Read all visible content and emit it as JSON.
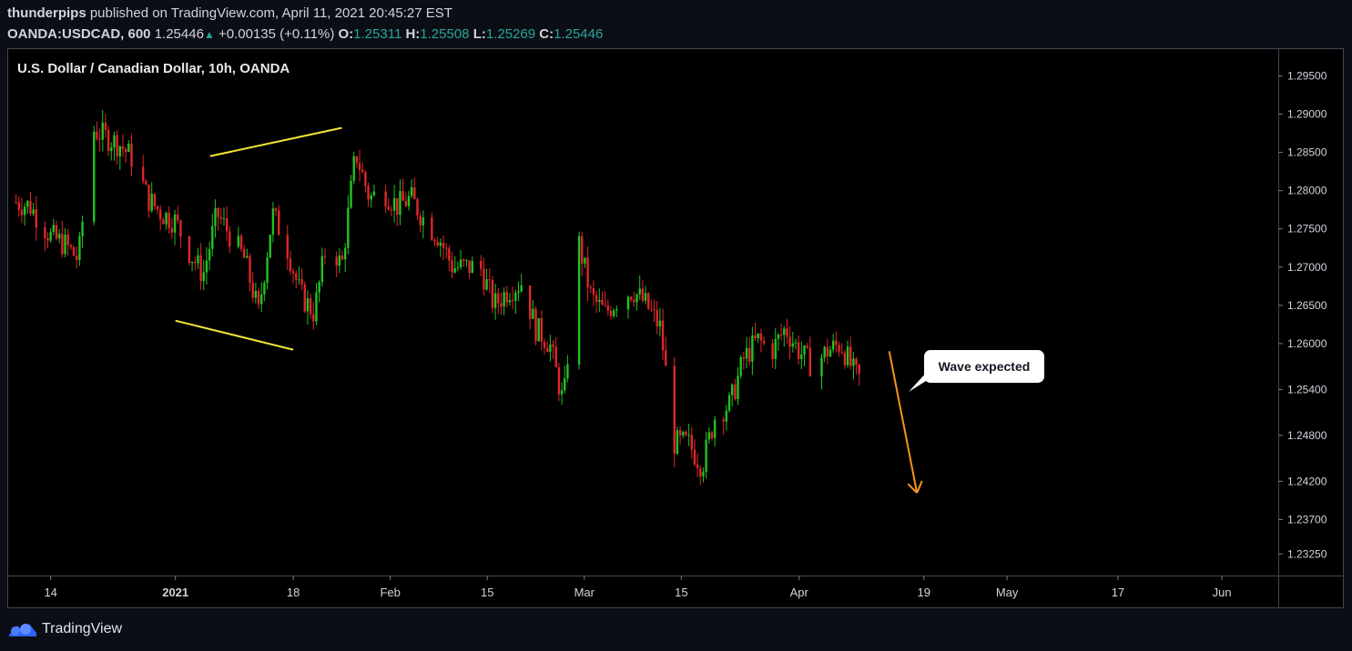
{
  "header": {
    "author": "thunderpips",
    "published_text": "published on TradingView.com, April 11, 2021 20:45:27 EST",
    "symbol": "OANDA:USDCAD, 600",
    "last": "1.25446",
    "change": "+0.00135 (+0.11%)",
    "o_label": "O:",
    "o_value": "1.25311",
    "h_label": "H:",
    "h_value": "1.25508",
    "l_label": "L:",
    "l_value": "1.25269",
    "c_label": "C:",
    "c_value": "1.25446"
  },
  "footer": {
    "brand": "TradingView"
  },
  "colors": {
    "up": "#26a69a",
    "candle_up": "#22c322",
    "candle_down": "#e0262b",
    "pattern": "#f3e63a",
    "arrow": "#f7941d"
  },
  "chart_data": {
    "type": "candlestick",
    "title": "U.S. Dollar / Canadian Dollar, 10h, OANDA",
    "ylim": [
      1.2298,
      1.2985
    ],
    "y_ticks": [
      "1.29500",
      "1.29000",
      "1.28500",
      "1.28000",
      "1.27500",
      "1.27000",
      "1.26500",
      "1.26000",
      "1.25400",
      "1.24800",
      "1.24200",
      "1.23700",
      "1.23250"
    ],
    "x_ticks": [
      "14",
      "2021",
      "18",
      "Feb",
      "15",
      "Mar",
      "15",
      "Apr",
      "19",
      "May",
      "17",
      "Jun"
    ],
    "close_path": [
      [
        "2020-12-09",
        1.2785
      ],
      [
        "2020-12-11",
        1.278
      ],
      [
        "2020-12-14",
        1.274
      ],
      [
        "2020-12-16",
        1.273
      ],
      [
        "2020-12-18",
        1.271
      ],
      [
        "2020-12-20",
        1.288
      ],
      [
        "2020-12-22",
        1.287
      ],
      [
        "2020-12-24",
        1.286
      ],
      [
        "2020-12-26",
        1.284
      ],
      [
        "2020-12-28",
        1.279
      ],
      [
        "2020-12-30",
        1.277
      ],
      [
        "2021-01-01",
        1.276
      ],
      [
        "2021-01-03",
        1.272
      ],
      [
        "2021-01-05",
        1.269
      ],
      [
        "2021-01-07",
        1.277
      ],
      [
        "2021-01-09",
        1.274
      ],
      [
        "2021-01-11",
        1.271
      ],
      [
        "2021-01-13",
        1.264
      ],
      [
        "2021-01-15",
        1.277
      ],
      [
        "2021-01-17",
        1.273
      ],
      [
        "2021-01-19",
        1.2665
      ],
      [
        "2021-01-21",
        1.264
      ],
      [
        "2021-01-23",
        1.274
      ],
      [
        "2021-01-25",
        1.27
      ],
      [
        "2021-01-27",
        1.285
      ],
      [
        "2021-01-29",
        1.279
      ],
      [
        "2021-01-31",
        1.28
      ],
      [
        "2021-02-02",
        1.278
      ],
      [
        "2021-02-04",
        1.279
      ],
      [
        "2021-02-06",
        1.276
      ],
      [
        "2021-02-08",
        1.274
      ],
      [
        "2021-02-10",
        1.27
      ],
      [
        "2021-02-12",
        1.27
      ],
      [
        "2021-02-14",
        1.27
      ],
      [
        "2021-02-16",
        1.265
      ],
      [
        "2021-02-18",
        1.267
      ],
      [
        "2021-02-20",
        1.268
      ],
      [
        "2021-02-22",
        1.262
      ],
      [
        "2021-02-24",
        1.26
      ],
      [
        "2021-02-26",
        1.252
      ],
      [
        "2021-02-28",
        1.274
      ],
      [
        "2021-03-02",
        1.266
      ],
      [
        "2021-03-04",
        1.264
      ],
      [
        "2021-03-06",
        1.266
      ],
      [
        "2021-03-08",
        1.267
      ],
      [
        "2021-03-10",
        1.265
      ],
      [
        "2021-03-12",
        1.262
      ],
      [
        "2021-03-14",
        1.247
      ],
      [
        "2021-03-16",
        1.247
      ],
      [
        "2021-03-18",
        1.244
      ],
      [
        "2021-03-20",
        1.251
      ],
      [
        "2021-03-22",
        1.252
      ],
      [
        "2021-03-24",
        1.258
      ],
      [
        "2021-03-26",
        1.2605
      ],
      [
        "2021-03-28",
        1.259
      ],
      [
        "2021-03-30",
        1.262
      ],
      [
        "2021-04-01",
        1.259
      ],
      [
        "2021-04-03",
        1.257
      ],
      [
        "2021-04-05",
        1.259
      ],
      [
        "2021-04-07",
        1.26
      ],
      [
        "2021-04-09",
        1.256
      ],
      [
        "2021-04-11",
        1.2545
      ]
    ],
    "annotations": {
      "label": "Wave expected",
      "upper_trendline": [
        [
          "2021-01-06",
          1.2845
        ],
        [
          "2021-01-25",
          1.2882
        ]
      ],
      "lower_trendline": [
        [
          "2021-01-01",
          1.263
        ],
        [
          "2021-01-18",
          1.2592
        ]
      ],
      "arrow": [
        [
          "2021-04-14",
          1.259
        ],
        [
          "2021-04-18",
          1.2405
        ]
      ]
    }
  }
}
